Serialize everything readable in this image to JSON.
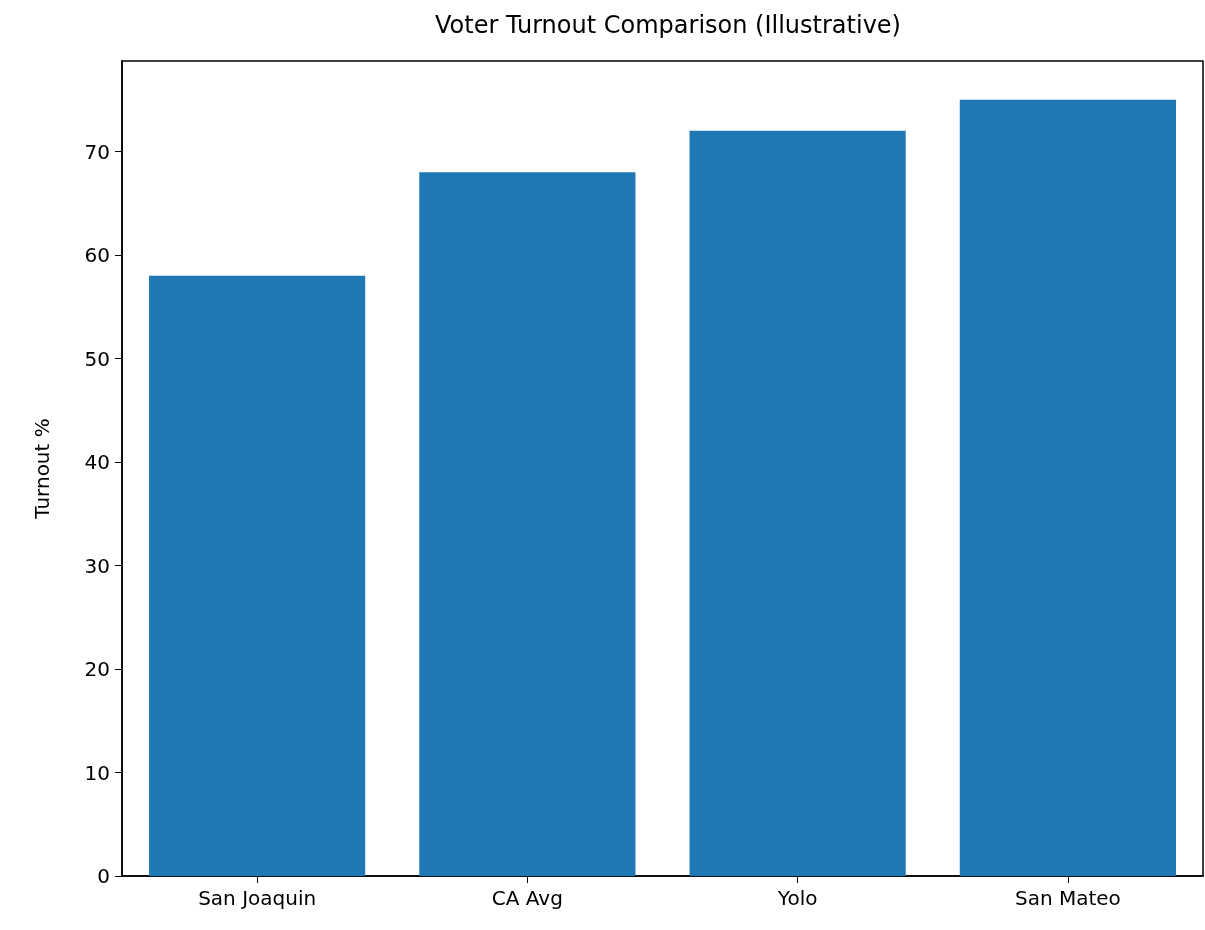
{
  "chart_data": {
    "type": "bar",
    "title": "Voter Turnout Comparison (Illustrative)",
    "ylabel": "Turnout %",
    "categories": [
      "San Joaquin",
      "CA Avg",
      "Yolo",
      "San Mateo"
    ],
    "values": [
      58,
      68,
      72,
      75
    ],
    "color": "#1f77b4",
    "ylim": [
      0,
      78.75
    ],
    "yticks": [
      0,
      10,
      20,
      30,
      40,
      50,
      60,
      70
    ],
    "grid": false
  }
}
